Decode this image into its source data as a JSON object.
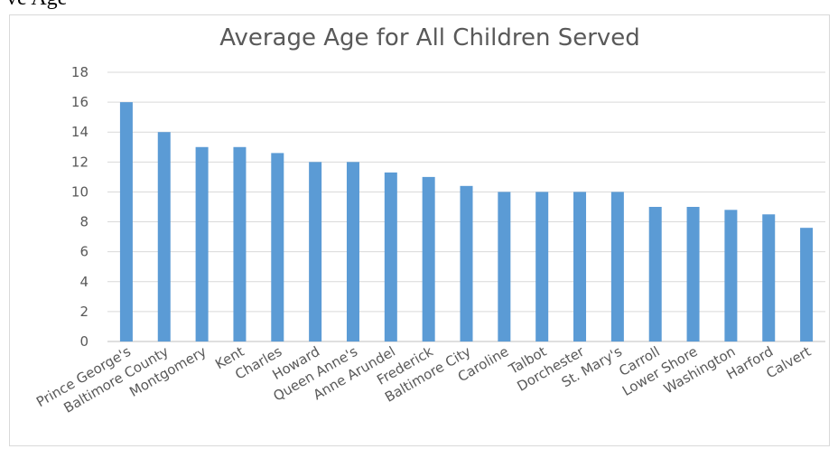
{
  "page": {
    "top_fragment_text": "ve Age"
  },
  "chart_data": {
    "type": "bar",
    "title": "Average Age for All Children Served",
    "xlabel": "",
    "ylabel": "",
    "ylim": [
      0,
      18
    ],
    "yticks": [
      0,
      2,
      4,
      6,
      8,
      10,
      12,
      14,
      16,
      18
    ],
    "grid": true,
    "legend": "none",
    "bar_color": "#5b9bd5",
    "categories": [
      "Prince George's",
      "Baltimore County",
      "Montgomery",
      "Kent",
      "Charles",
      "Howard",
      "Queen Anne's",
      "Anne Arundel",
      "Frederick",
      "Baltimore City",
      "Caroline",
      "Talbot",
      "Dorchester",
      "St. Mary's",
      "Carroll",
      "Lower Shore",
      "Washington",
      "Harford",
      "Calvert"
    ],
    "values": [
      16,
      14,
      13,
      13,
      12.6,
      12,
      12,
      11.3,
      11,
      10.4,
      10,
      10,
      10,
      10,
      9,
      9,
      8.8,
      8.5,
      7.6
    ]
  }
}
